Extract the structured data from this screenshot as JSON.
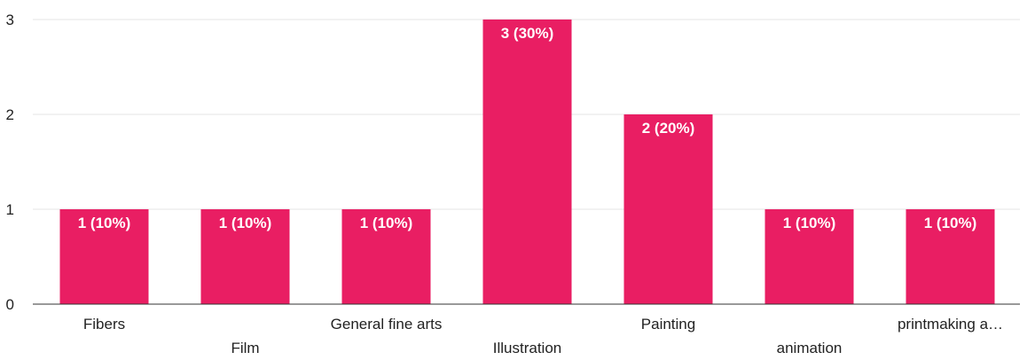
{
  "chart_data": {
    "type": "bar",
    "categories": [
      "Fibers",
      "Film",
      "General fine arts",
      "Illustration",
      "Painting",
      "animation",
      "printmaking a…"
    ],
    "values": [
      1,
      1,
      1,
      3,
      2,
      1,
      1
    ],
    "data_labels": [
      "1 (10%)",
      "1 (10%)",
      "1 (10%)",
      "3 (30%)",
      "2 (20%)",
      "1 (10%)",
      "1 (10%)"
    ],
    "title": "",
    "xlabel": "",
    "ylabel": "",
    "ylim": [
      0,
      3
    ],
    "yticks": [
      "0",
      "1",
      "2",
      "3"
    ],
    "grid": true,
    "legend": "none",
    "bar_color": "#e91e63"
  }
}
